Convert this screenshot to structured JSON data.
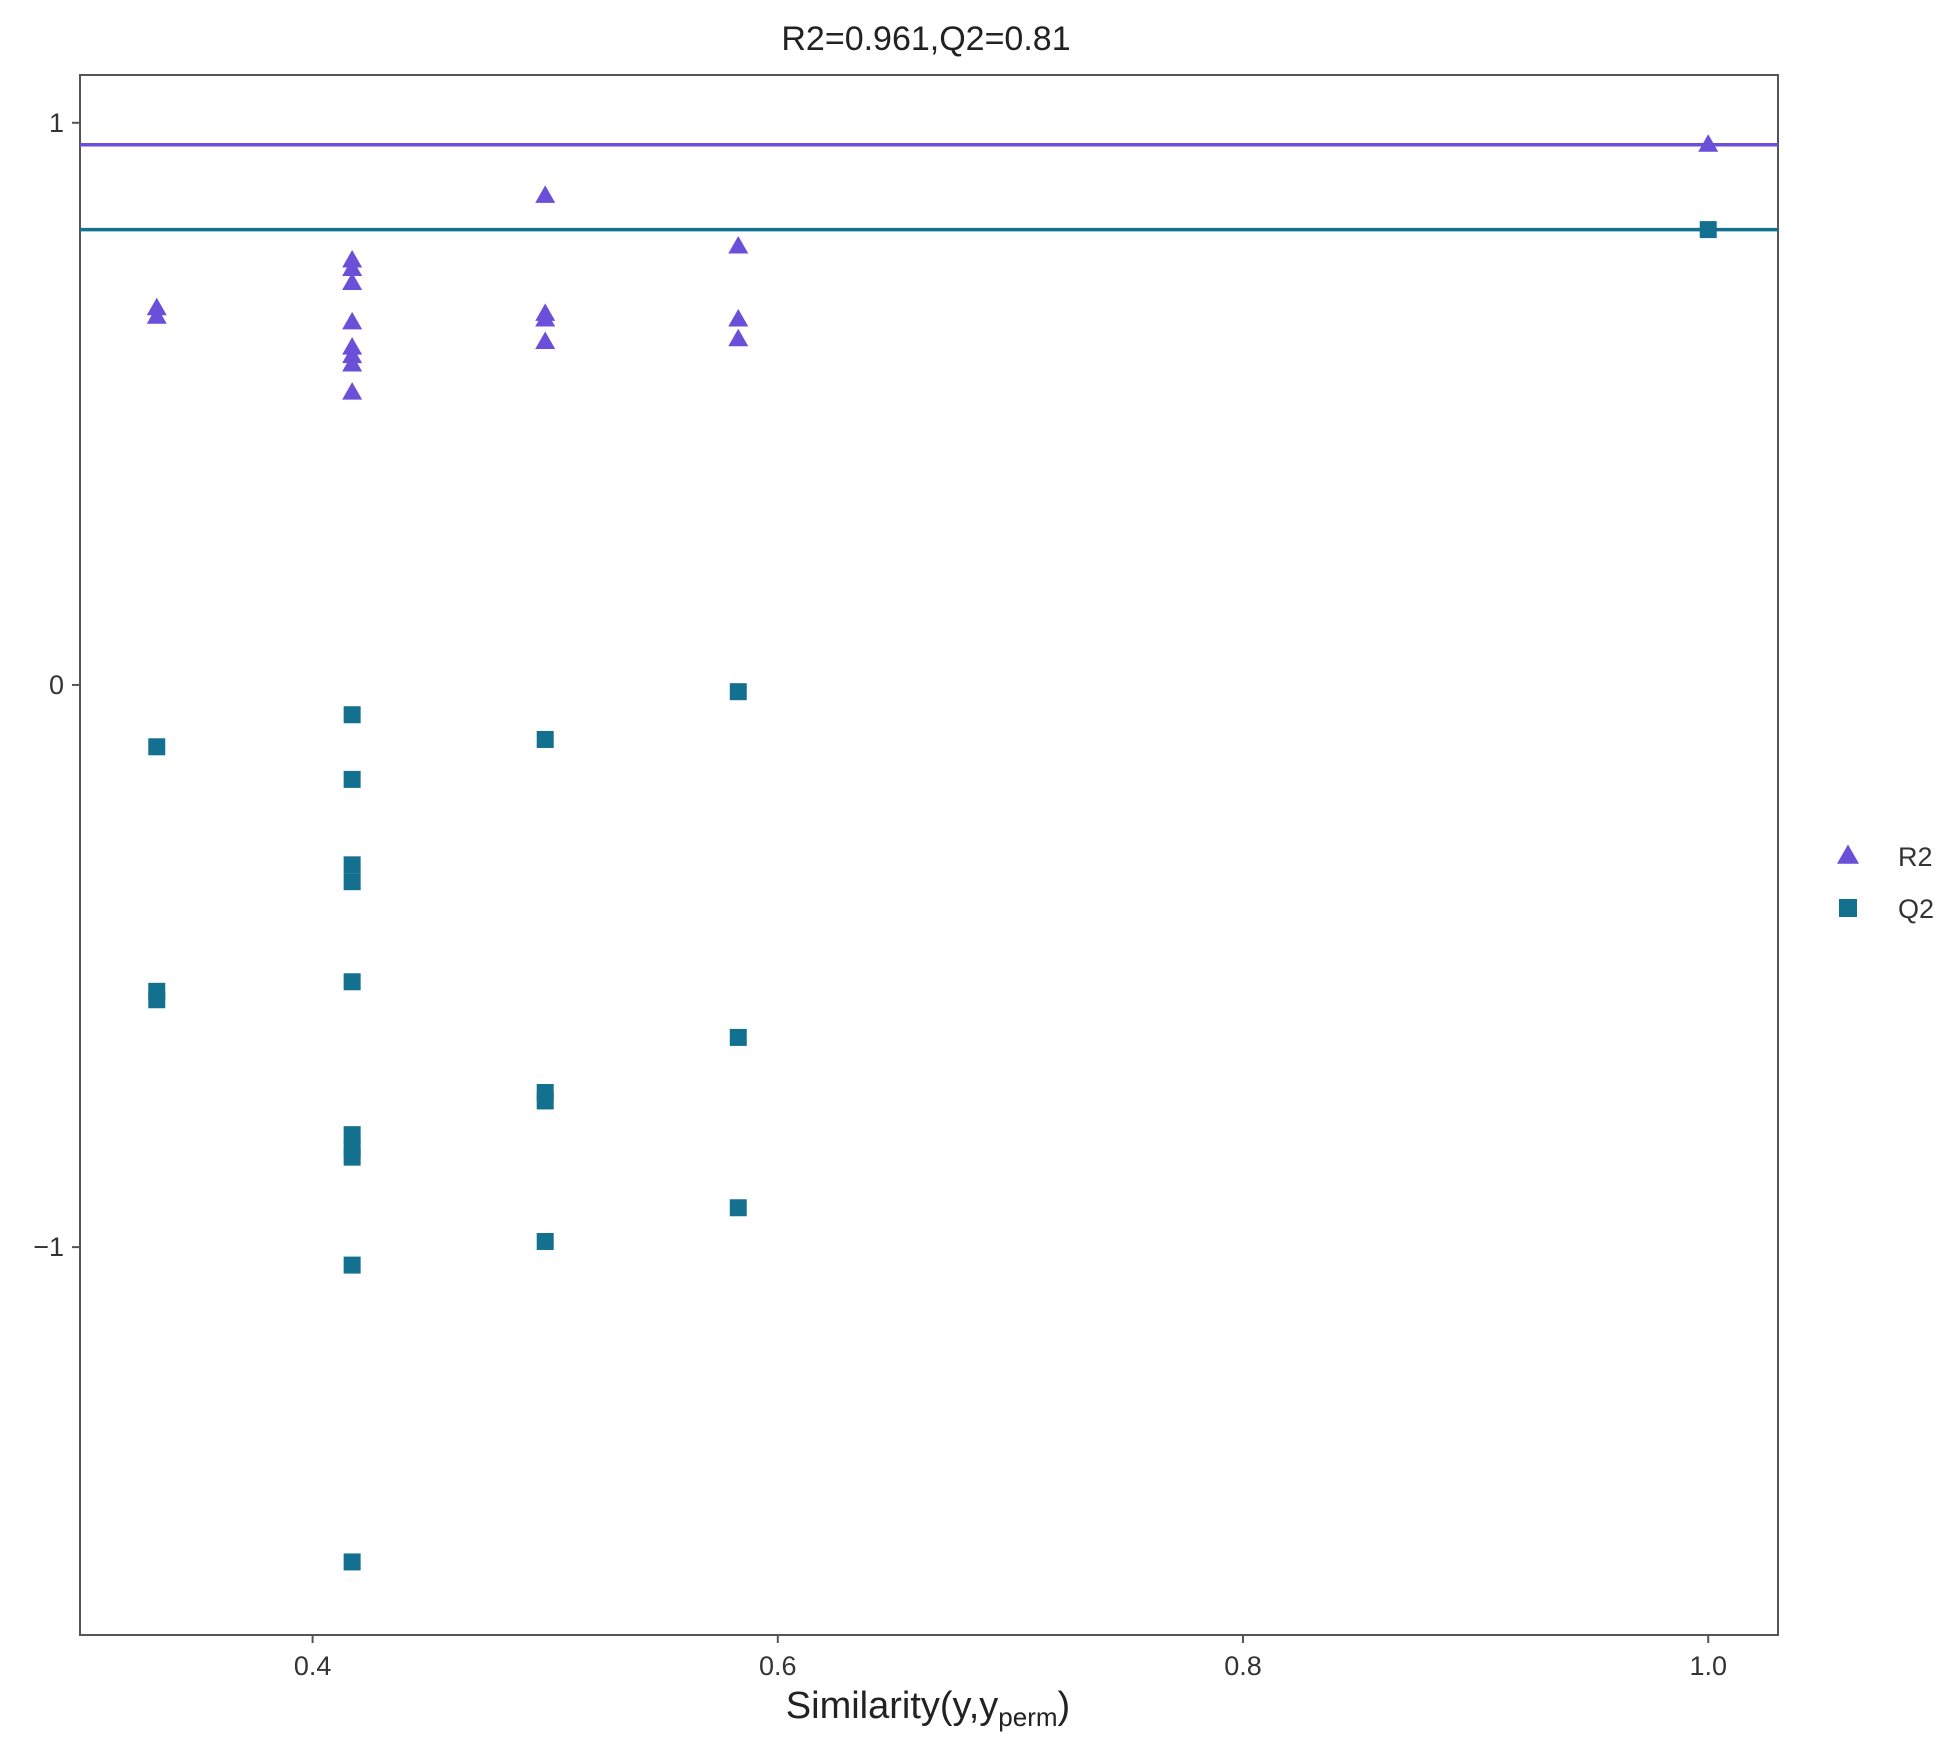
{
  "chart_data": {
    "type": "scatter",
    "title": "R2=0.961,Q2=0.81",
    "xlabel": {
      "main": "Similarity(y,y",
      "sub": "perm",
      "close": ")"
    },
    "ylabel": "",
    "xlim": [
      0.3,
      1.03
    ],
    "ylim": [
      -1.69,
      1.085
    ],
    "x_ticks": [
      0.4,
      0.6,
      0.8,
      1.0
    ],
    "x_tick_labels": [
      "0.4",
      "0.6",
      "0.8",
      "1.0"
    ],
    "y_ticks": [
      1,
      0,
      -1
    ],
    "y_tick_labels": [
      "1",
      "0",
      "−1"
    ],
    "grid": false,
    "legend_position": "right",
    "reference_lines": [
      {
        "series": "R2",
        "y": 0.961
      },
      {
        "series": "Q2",
        "y": 0.81
      }
    ],
    "series": [
      {
        "name": "R2",
        "marker": "triangle",
        "color": "#6a4fd8",
        "points": [
          {
            "x": 0.333,
            "y": 0.67
          },
          {
            "x": 0.333,
            "y": 0.655
          },
          {
            "x": 0.417,
            "y": 0.755
          },
          {
            "x": 0.417,
            "y": 0.74
          },
          {
            "x": 0.417,
            "y": 0.715
          },
          {
            "x": 0.417,
            "y": 0.645
          },
          {
            "x": 0.417,
            "y": 0.6
          },
          {
            "x": 0.417,
            "y": 0.585
          },
          {
            "x": 0.417,
            "y": 0.57
          },
          {
            "x": 0.417,
            "y": 0.52
          },
          {
            "x": 0.5,
            "y": 0.87
          },
          {
            "x": 0.5,
            "y": 0.66
          },
          {
            "x": 0.5,
            "y": 0.65
          },
          {
            "x": 0.5,
            "y": 0.61
          },
          {
            "x": 0.583,
            "y": 0.78
          },
          {
            "x": 0.583,
            "y": 0.65
          },
          {
            "x": 0.583,
            "y": 0.615
          },
          {
            "x": 1.0,
            "y": 0.961
          }
        ]
      },
      {
        "name": "Q2",
        "marker": "square",
        "color": "#13718f",
        "points": [
          {
            "x": 0.333,
            "y": -0.11
          },
          {
            "x": 0.333,
            "y": -0.545
          },
          {
            "x": 0.333,
            "y": -0.56
          },
          {
            "x": 0.417,
            "y": -0.053
          },
          {
            "x": 0.417,
            "y": -0.168
          },
          {
            "x": 0.417,
            "y": -0.32
          },
          {
            "x": 0.417,
            "y": -0.35
          },
          {
            "x": 0.417,
            "y": -0.528
          },
          {
            "x": 0.417,
            "y": -0.8
          },
          {
            "x": 0.417,
            "y": -0.825
          },
          {
            "x": 0.417,
            "y": -0.84
          },
          {
            "x": 0.417,
            "y": -1.032
          },
          {
            "x": 0.417,
            "y": -1.56
          },
          {
            "x": 0.5,
            "y": -0.097
          },
          {
            "x": 0.5,
            "y": -0.725
          },
          {
            "x": 0.5,
            "y": -0.74
          },
          {
            "x": 0.5,
            "y": -0.99
          },
          {
            "x": 0.583,
            "y": -0.012
          },
          {
            "x": 0.583,
            "y": -0.627
          },
          {
            "x": 0.583,
            "y": -0.93
          },
          {
            "x": 1.0,
            "y": 0.81
          }
        ]
      }
    ]
  }
}
